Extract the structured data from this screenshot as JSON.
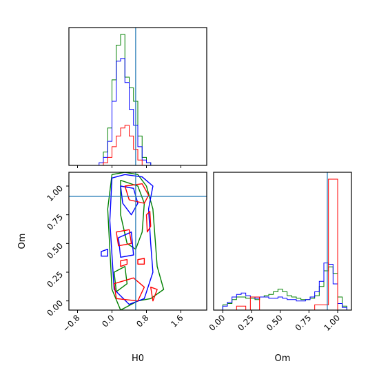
{
  "chart_data": [
    {
      "type": "histogram",
      "panel": "H0 marginal",
      "xlim": [
        -1.0,
        2.2
      ],
      "truth": 0.55,
      "bins": [
        -0.3,
        -0.2,
        -0.1,
        0.0,
        0.1,
        0.2,
        0.3,
        0.4,
        0.5,
        0.6,
        0.7,
        0.8,
        0.9,
        1.0,
        1.1,
        1.2
      ],
      "series": [
        {
          "color": "#008000",
          "counts": [
            0,
            5,
            14,
            32,
            45,
            49,
            33,
            29,
            24,
            11,
            3,
            1,
            0,
            0,
            0
          ]
        },
        {
          "color": "#0000ff",
          "counts": [
            1,
            3,
            9,
            24,
            39,
            40,
            31,
            21,
            15,
            7,
            2,
            1,
            0,
            0,
            0
          ]
        },
        {
          "color": "#ff0000",
          "counts": [
            0,
            1,
            3,
            7,
            11,
            14,
            15,
            11,
            6,
            2,
            0,
            0,
            0,
            0,
            0
          ]
        }
      ]
    },
    {
      "type": "contour",
      "panel": "H0 vs Om",
      "xlabel": "H0",
      "ylabel": "Om",
      "xlim": [
        -1.0,
        2.2
      ],
      "ylim": [
        -0.08,
        1.12
      ],
      "xticks": [
        "−0.8",
        "0.0",
        "0.8",
        "1.6"
      ],
      "xtick_values": [
        -0.8,
        0.0,
        0.8,
        1.6
      ],
      "yticks": [
        "0.00",
        "0.25",
        "0.50",
        "0.75",
        "1.00"
      ],
      "ytick_values": [
        0.0,
        0.25,
        0.5,
        0.75,
        1.0
      ],
      "truth": {
        "x": 0.55,
        "y": 0.91
      },
      "series": [
        {
          "color": "#008000",
          "levels": [
            [
              [
                0.0,
                1.1
              ],
              [
                0.3,
                1.12
              ],
              [
                0.6,
                1.1
              ],
              [
                0.8,
                1.0
              ],
              [
                0.95,
                0.8
              ],
              [
                1.0,
                0.55
              ],
              [
                1.05,
                0.3
              ],
              [
                1.2,
                0.1
              ],
              [
                0.9,
                0.02
              ],
              [
                0.6,
                0.0
              ],
              [
                0.2,
                -0.08
              ],
              [
                0.0,
                0.1
              ],
              [
                -0.05,
                0.45
              ],
              [
                -0.1,
                0.8
              ]
            ],
            [
              [
                0.2,
                1.05
              ],
              [
                0.6,
                1.0
              ],
              [
                0.75,
                0.85
              ],
              [
                0.7,
                0.6
              ],
              [
                0.55,
                0.45
              ],
              [
                0.35,
                0.5
              ],
              [
                0.2,
                0.75
              ]
            ],
            [
              [
                0.05,
                0.25
              ],
              [
                0.3,
                0.3
              ],
              [
                0.35,
                0.15
              ],
              [
                0.1,
                0.08
              ]
            ]
          ]
        },
        {
          "color": "#0000ff",
          "levels": [
            [
              [
                0.0,
                1.07
              ],
              [
                0.3,
                1.1
              ],
              [
                0.7,
                1.08
              ],
              [
                0.95,
                1.0
              ],
              [
                0.85,
                0.8
              ],
              [
                0.9,
                0.5
              ],
              [
                0.95,
                0.25
              ],
              [
                0.75,
                0.02
              ],
              [
                0.4,
                -0.03
              ],
              [
                0.05,
                0.1
              ],
              [
                0.0,
                0.4
              ],
              [
                -0.05,
                0.7
              ]
            ],
            [
              [
                0.2,
                1.0
              ],
              [
                0.5,
                0.98
              ],
              [
                0.6,
                0.85
              ],
              [
                0.45,
                0.75
              ],
              [
                0.25,
                0.85
              ]
            ],
            [
              [
                0.15,
                0.55
              ],
              [
                0.45,
                0.6
              ],
              [
                0.5,
                0.4
              ],
              [
                0.2,
                0.38
              ]
            ],
            [
              [
                -0.25,
                0.43
              ],
              [
                -0.1,
                0.45
              ],
              [
                -0.1,
                0.39
              ],
              [
                -0.25,
                0.39
              ]
            ]
          ]
        },
        {
          "color": "#ff0000",
          "levels": [
            [
              [
                0.3,
                1.0
              ],
              [
                0.7,
                1.02
              ],
              [
                0.85,
                0.92
              ],
              [
                0.75,
                0.85
              ],
              [
                0.4,
                0.88
              ]
            ],
            [
              [
                0.1,
                0.6
              ],
              [
                0.4,
                0.62
              ],
              [
                0.45,
                0.5
              ],
              [
                0.15,
                0.48
              ]
            ],
            [
              [
                0.2,
                0.35
              ],
              [
                0.35,
                0.36
              ],
              [
                0.35,
                0.32
              ],
              [
                0.2,
                0.3
              ]
            ],
            [
              [
                0.6,
                0.36
              ],
              [
                0.75,
                0.37
              ],
              [
                0.75,
                0.32
              ],
              [
                0.6,
                0.32
              ]
            ],
            [
              [
                0.8,
                0.75
              ],
              [
                0.88,
                0.78
              ],
              [
                0.9,
                0.65
              ],
              [
                0.82,
                0.6
              ]
            ],
            [
              [
                0.05,
                0.15
              ],
              [
                0.5,
                0.2
              ],
              [
                0.75,
                0.12
              ],
              [
                0.6,
                0.0
              ],
              [
                0.1,
                0.02
              ]
            ],
            [
              [
                0.9,
                0.12
              ],
              [
                1.05,
                0.1
              ],
              [
                0.95,
                0.0
              ]
            ]
          ]
        }
      ]
    },
    {
      "type": "histogram",
      "panel": "Om marginal",
      "xlabel": "Om",
      "xlim": [
        -0.08,
        1.12
      ],
      "xticks": [
        "0.00",
        "0.25",
        "0.50",
        "0.75",
        "1.00"
      ],
      "xtick_values": [
        0.0,
        0.25,
        0.5,
        0.75,
        1.0
      ],
      "truth": 0.91,
      "bins": [
        0.0,
        0.04,
        0.08,
        0.12,
        0.16,
        0.2,
        0.24,
        0.28,
        0.32,
        0.36,
        0.4,
        0.44,
        0.48,
        0.52,
        0.56,
        0.6,
        0.64,
        0.68,
        0.72,
        0.76,
        0.8,
        0.84,
        0.88,
        0.92,
        0.96,
        1.0,
        1.04,
        1.08
      ],
      "series": [
        {
          "color": "#008000",
          "counts": [
            4,
            5,
            8,
            10,
            10,
            9,
            9,
            8,
            10,
            11,
            12,
            14,
            16,
            14,
            11,
            10,
            9,
            8,
            8,
            9,
            11,
            18,
            30,
            33,
            28,
            10,
            3
          ]
        },
        {
          "color": "#0000ff",
          "counts": [
            3,
            6,
            10,
            12,
            13,
            11,
            10,
            9,
            10,
            10,
            9,
            9,
            10,
            9,
            8,
            8,
            7,
            7,
            8,
            10,
            14,
            22,
            36,
            35,
            20,
            5,
            2
          ]
        },
        {
          "color": "#ff0000",
          "counts": [
            0,
            0,
            0,
            3,
            3,
            0,
            10,
            10,
            0,
            0,
            0,
            0,
            0,
            0,
            0,
            0,
            0,
            0,
            0,
            0,
            4,
            4,
            4,
            100,
            100,
            0,
            0
          ]
        }
      ]
    }
  ]
}
